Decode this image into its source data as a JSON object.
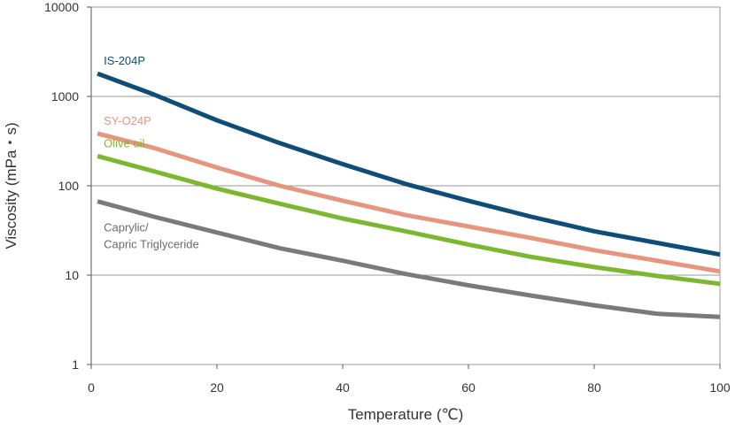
{
  "chart_data": {
    "type": "line",
    "xlabel": "Temperature (℃)",
    "ylabel": "Viscosity (mPa・s)",
    "xlim": [
      0,
      100
    ],
    "ylim": [
      1,
      10000
    ],
    "y_scale": "log",
    "grid": "horizontal",
    "x_ticks": [
      0,
      20,
      40,
      60,
      80,
      100
    ],
    "y_ticks": [
      1,
      10,
      100,
      1000,
      10000
    ],
    "x_tick_labels": [
      "0",
      "20",
      "40",
      "60",
      "80",
      "100"
    ],
    "y_tick_labels": [
      "1",
      "10",
      "100",
      "1000",
      "10000"
    ],
    "x": [
      1,
      10,
      20,
      30,
      40,
      50,
      60,
      70,
      80,
      90,
      100
    ],
    "series": [
      {
        "name": "IS-204P",
        "color": "#0e4d78",
        "values": [
          1800,
          1050,
          540,
          300,
          175,
          105,
          68,
          45,
          31,
          23,
          17
        ]
      },
      {
        "name": "SY-O24P",
        "color": "#e8957f",
        "values": [
          385,
          265,
          160,
          100,
          68,
          47,
          35,
          26,
          19,
          14.5,
          11
        ]
      },
      {
        "name": "Olive oil",
        "color": "#7cb82f",
        "values": [
          215,
          145,
          93,
          63,
          43,
          31,
          22,
          16,
          12.3,
          9.8,
          8.0
        ]
      },
      {
        "name": "Caprylic/\nCapric Triglyceride",
        "color": "#7a7a7a",
        "values": [
          67,
          45,
          30,
          20,
          14.5,
          10.3,
          7.7,
          5.9,
          4.6,
          3.7,
          3.4
        ]
      }
    ]
  }
}
